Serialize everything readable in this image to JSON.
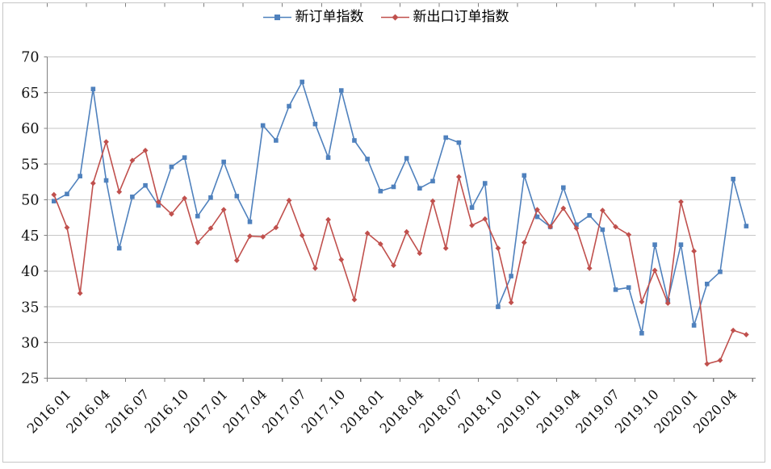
{
  "legend": {
    "items": [
      {
        "label": "新订单指数",
        "marker": "square-icon",
        "color": "#4F81BD"
      },
      {
        "label": "新出口订单指数",
        "marker": "diamond-icon",
        "color": "#C0504D"
      }
    ]
  },
  "chart_data": {
    "type": "line",
    "title": "",
    "xlabel": "",
    "ylabel": "",
    "ylim": [
      25,
      70
    ],
    "y_ticks": [
      70,
      65,
      60,
      55,
      50,
      45,
      40,
      35,
      30,
      25
    ],
    "x_tick_labels": [
      "2016.01",
      "2016.04",
      "2016.07",
      "2016.10",
      "2017.01",
      "2017.04",
      "2017.07",
      "2017.10",
      "2018.01",
      "2018.04",
      "2018.07",
      "2018.10",
      "2019.01",
      "2019.04",
      "2019.07",
      "2019.10",
      "2020.01",
      "2020.04"
    ],
    "months": [
      "2016.01",
      "2016.02",
      "2016.03",
      "2016.04",
      "2016.05",
      "2016.06",
      "2016.07",
      "2016.08",
      "2016.09",
      "2016.10",
      "2016.11",
      "2016.12",
      "2017.01",
      "2017.02",
      "2017.03",
      "2017.04",
      "2017.05",
      "2017.06",
      "2017.07",
      "2017.08",
      "2017.09",
      "2017.10",
      "2017.11",
      "2017.12",
      "2018.01",
      "2018.02",
      "2018.03",
      "2018.04",
      "2018.05",
      "2018.06",
      "2018.07",
      "2018.08",
      "2018.09",
      "2018.10",
      "2018.11",
      "2018.12",
      "2019.01",
      "2019.02",
      "2019.03",
      "2019.04",
      "2019.05",
      "2019.06",
      "2019.07",
      "2019.08",
      "2019.09",
      "2019.10",
      "2019.11",
      "2019.12",
      "2020.01",
      "2020.02",
      "2020.03",
      "2020.04",
      "2020.05",
      "2020.06"
    ],
    "series": [
      {
        "name": "新订单指数",
        "color": "#4F81BD",
        "marker": "square",
        "values": [
          49.8,
          50.8,
          53.3,
          65.5,
          52.7,
          43.2,
          50.4,
          52.0,
          49.2,
          54.6,
          55.9,
          47.7,
          50.3,
          55.3,
          50.5,
          46.9,
          60.4,
          58.3,
          63.1,
          66.5,
          60.6,
          55.9,
          65.3,
          58.3,
          55.7,
          51.2,
          51.8,
          55.8,
          51.6,
          52.6,
          58.7,
          58.0,
          48.9,
          52.3,
          35.0,
          39.3,
          53.4,
          47.6,
          46.2,
          51.7,
          46.5,
          47.8,
          45.8,
          37.4,
          37.7,
          31.3,
          43.7,
          35.9,
          43.7,
          32.4,
          38.2,
          39.9,
          52.9,
          46.3
        ]
      },
      {
        "name": "新出口订单指数",
        "color": "#C0504D",
        "marker": "diamond",
        "values": [
          50.7,
          46.1,
          36.9,
          52.3,
          58.1,
          51.1,
          55.5,
          56.9,
          49.7,
          48.0,
          50.2,
          44.0,
          46.0,
          48.6,
          41.5,
          44.9,
          44.8,
          46.1,
          49.9,
          45.0,
          40.4,
          47.2,
          41.6,
          36.0,
          45.3,
          43.8,
          40.8,
          45.5,
          42.5,
          49.8,
          43.2,
          53.2,
          46.4,
          47.3,
          43.2,
          35.6,
          44.0,
          48.6,
          46.2,
          48.8,
          46.0,
          40.4,
          48.5,
          46.2,
          45.1,
          35.7,
          40.1,
          35.5,
          49.7,
          42.8,
          27.0,
          27.5,
          31.7,
          31.1
        ]
      }
    ],
    "grid": true,
    "legend_position": "top"
  },
  "colors": {
    "grid": "#c6c6c6",
    "axis": "#808080",
    "tick": "#808080",
    "text": "#111111",
    "frame": "#c6c6c6",
    "background": "#ffffff"
  }
}
